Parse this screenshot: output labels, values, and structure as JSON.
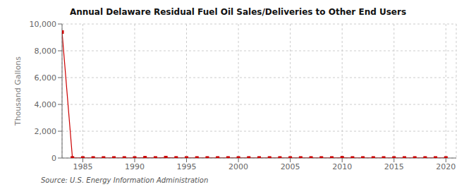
{
  "chart_data": {
    "type": "line",
    "title": "Annual Delaware Residual Fuel Oil Sales/Deliveries to Other End Users",
    "ylabel": "Thousand Gallons",
    "source": "Source: U.S. Energy Information Administration",
    "x": [
      1983,
      1984,
      1985,
      1986,
      1987,
      1988,
      1989,
      1990,
      1991,
      1992,
      1993,
      1994,
      1995,
      1996,
      1997,
      1998,
      1999,
      2000,
      2001,
      2002,
      2003,
      2004,
      2005,
      2006,
      2007,
      2008,
      2009,
      2010,
      2011,
      2012,
      2013,
      2014,
      2015,
      2016,
      2017,
      2018,
      2019,
      2020
    ],
    "values": [
      9400,
      4,
      2,
      2,
      2,
      2,
      2,
      2,
      20,
      3,
      30,
      5,
      2,
      2,
      2,
      2,
      2,
      2,
      2,
      2,
      2,
      2,
      2,
      2,
      2,
      2,
      2,
      15,
      2,
      2,
      2,
      2,
      2,
      2,
      2,
      2,
      2,
      2
    ],
    "color": "#cc0000",
    "marker": "square",
    "xlim": [
      1983,
      2021
    ],
    "xticks": [
      1985,
      1990,
      1995,
      2000,
      2005,
      2010,
      2015,
      2020
    ],
    "ylim": [
      0,
      10000
    ],
    "yticks": [
      0,
      {
        "value": 2000,
        "label": "2,000"
      },
      {
        "value": 4000,
        "label": "4,000"
      },
      {
        "value": 6000,
        "label": "6,000"
      },
      {
        "value": 8000,
        "label": "8,000"
      },
      {
        "value": 10000,
        "label": "10,000"
      }
    ],
    "grid": true
  }
}
